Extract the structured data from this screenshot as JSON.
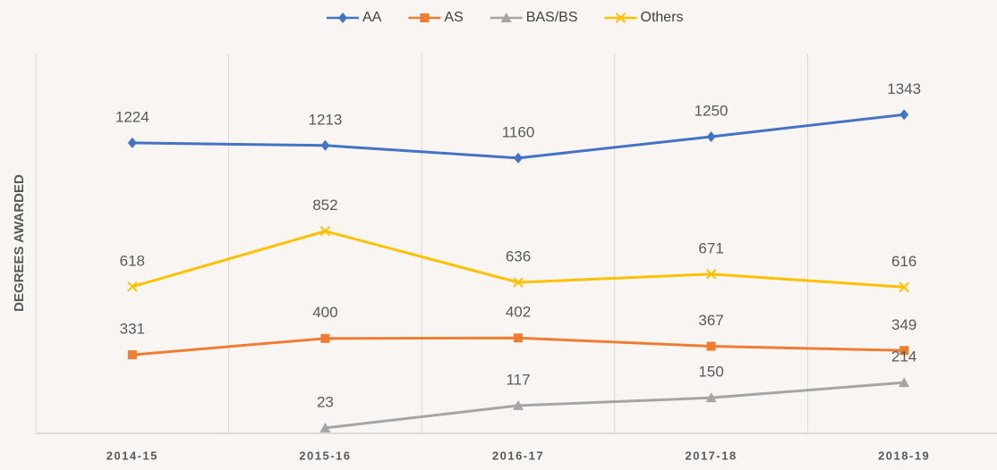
{
  "chart_data": {
    "type": "line",
    "y_axis_label": "DEGREES AWARDED",
    "categories": [
      "2014-15",
      "2015-16",
      "2016-17",
      "2017-18",
      "2018-19"
    ],
    "series": [
      {
        "name": "AA",
        "color": "#4472c4",
        "marker": "diamond",
        "values": [
          1224,
          1213,
          1160,
          1250,
          1343
        ]
      },
      {
        "name": "AS",
        "color": "#ed7d31",
        "marker": "square",
        "values": [
          331,
          400,
          402,
          367,
          349
        ]
      },
      {
        "name": "BAS/BS",
        "color": "#a5a5a5",
        "marker": "triangle",
        "values": [
          null,
          23,
          117,
          150,
          214
        ]
      },
      {
        "name": "Others",
        "color": "#ffc000",
        "marker": "x",
        "values": [
          618,
          852,
          636,
          671,
          616
        ]
      }
    ],
    "ylim": [
      0,
      1600
    ],
    "legend": "top",
    "data_labels": true
  }
}
